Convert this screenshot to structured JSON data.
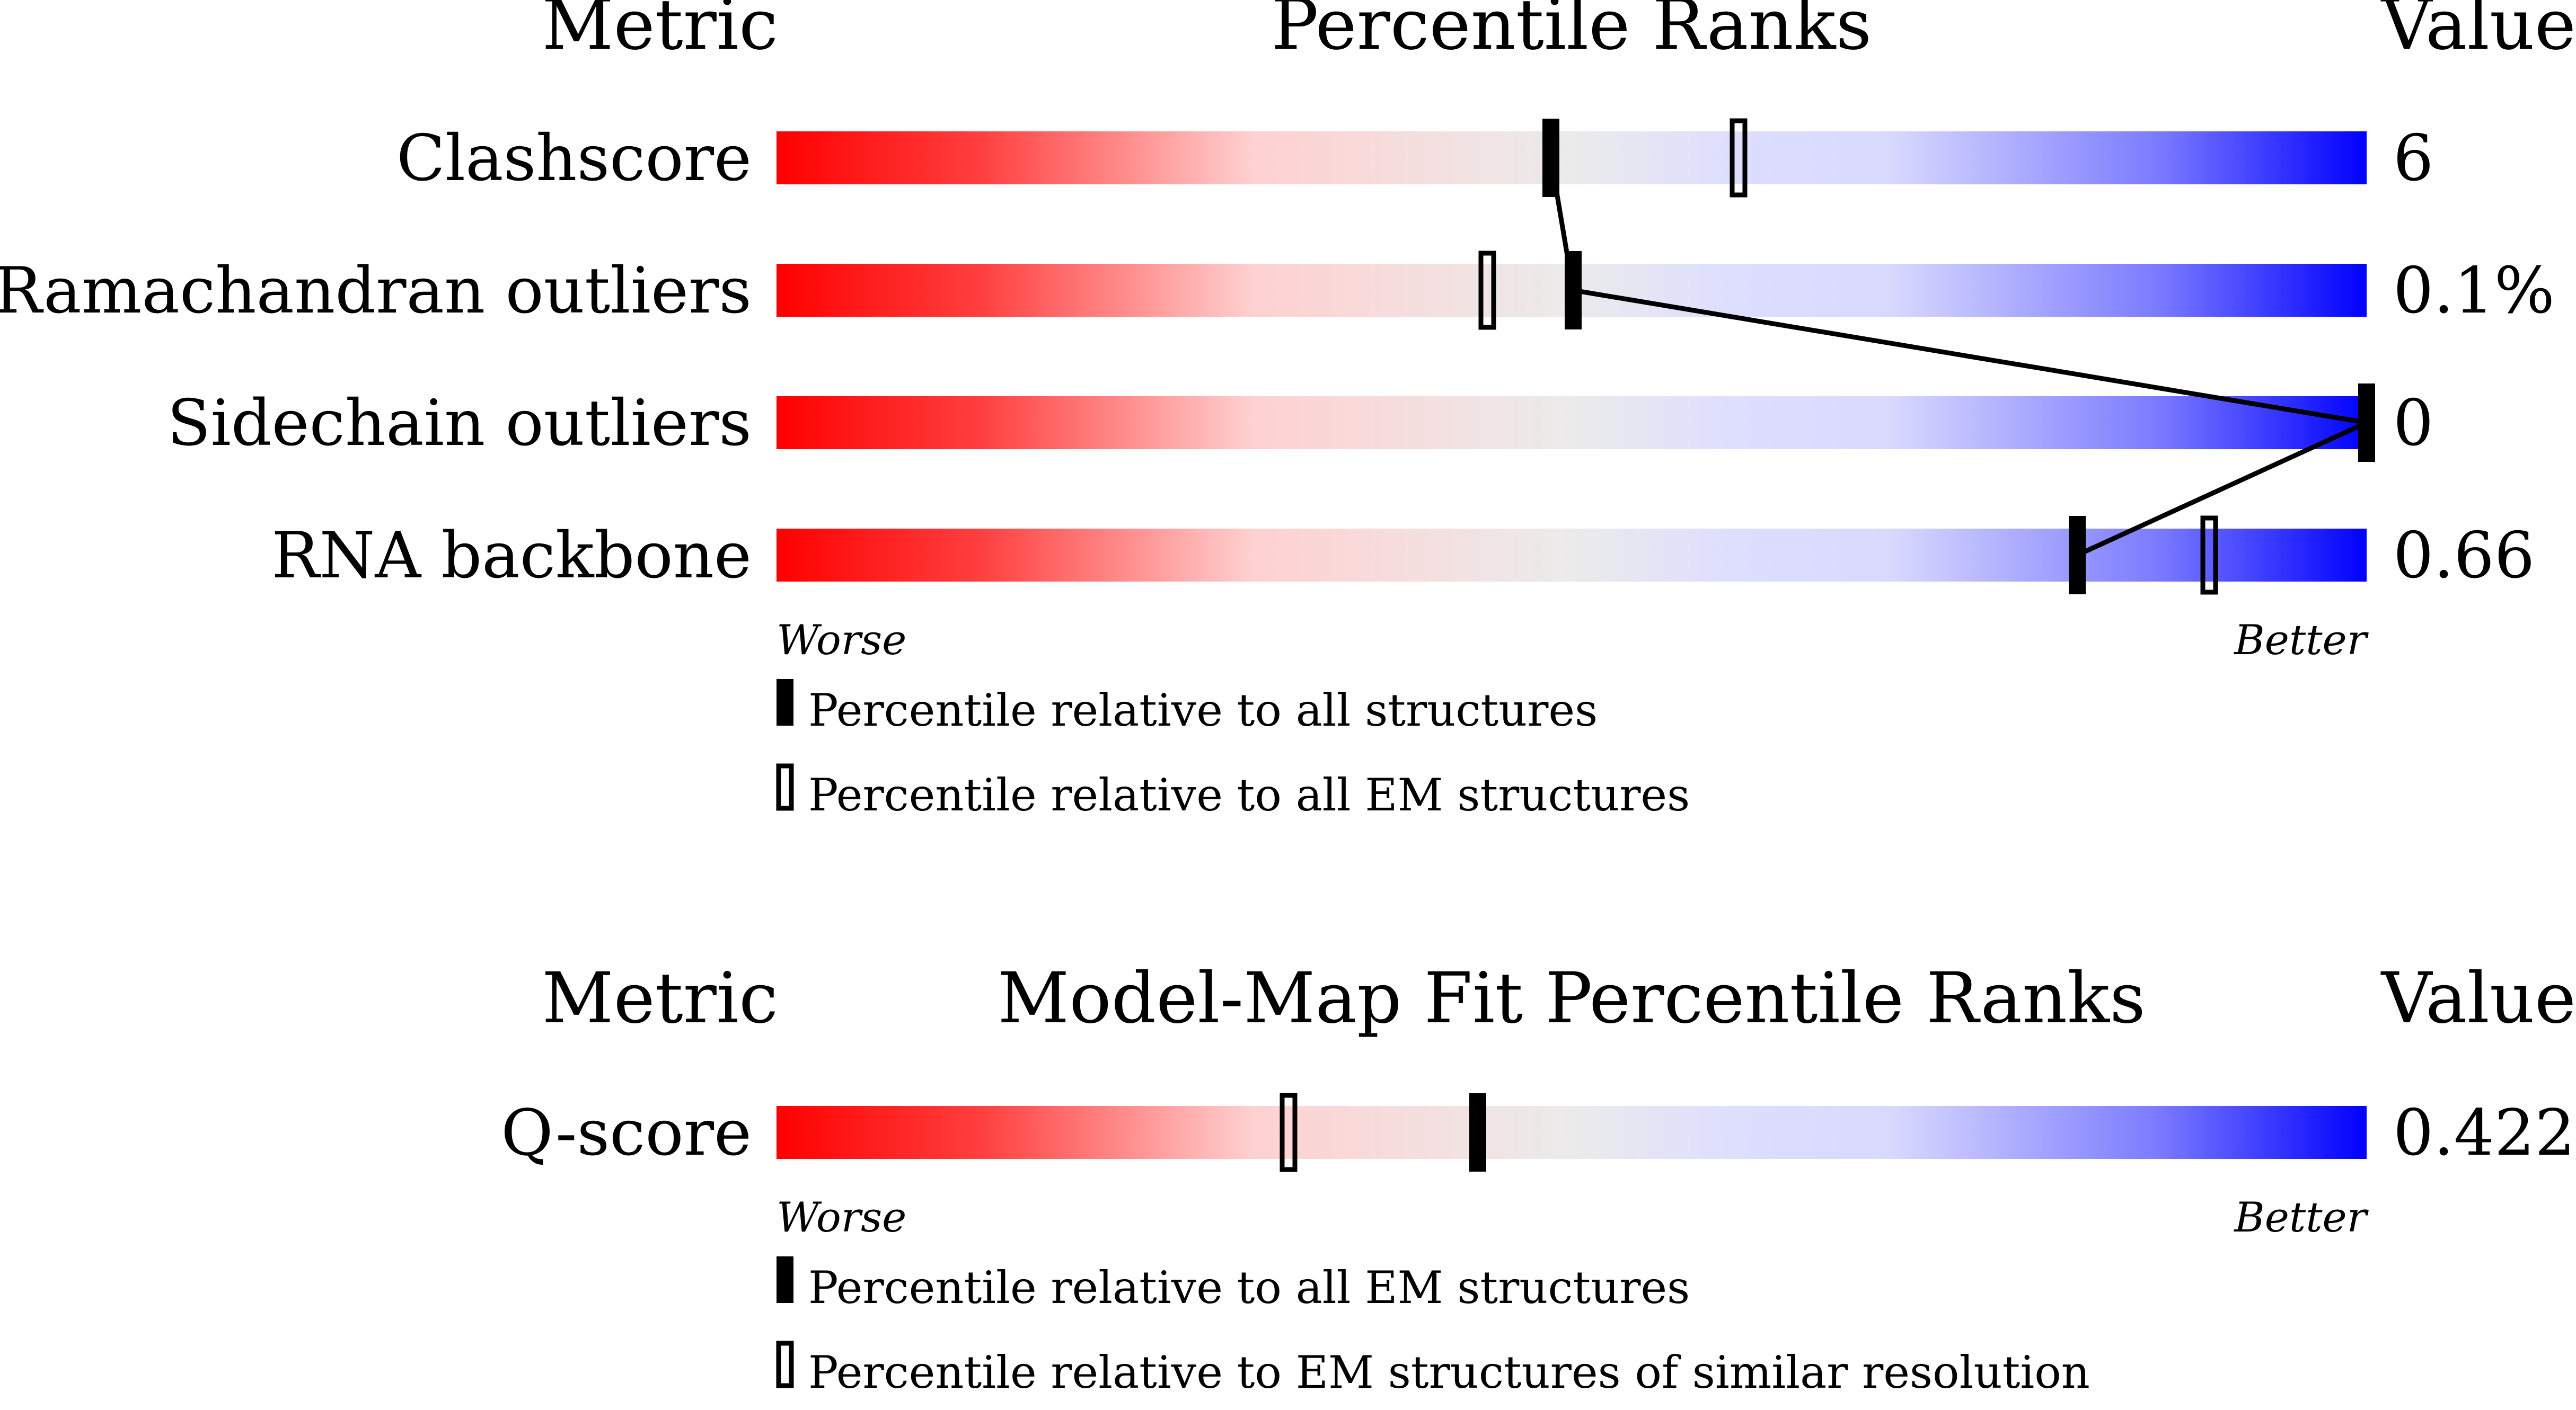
{
  "colors": {
    "worse": "#ff0000",
    "middle": "#ebebeb",
    "better": "#0000ff",
    "marker": "#000000"
  },
  "chart_data": [
    {
      "type": "bar",
      "headers": {
        "metric": "Metric",
        "title": "Percentile Ranks",
        "value": "Value"
      },
      "xlabel_left": "Worse",
      "xlabel_right": "Better",
      "xlim": [
        0,
        100
      ],
      "categories": [
        "Clashscore",
        "Ramachandran outliers",
        "Sidechain outliers",
        "RNA backbone"
      ],
      "values": [
        "6",
        "0.1%",
        "0",
        "0.66"
      ],
      "series": [
        {
          "name": "Percentile relative to all structures",
          "marker": "filled",
          "connected": true,
          "values": [
            48.7,
            50.1,
            100,
            81.8
          ]
        },
        {
          "name": "Percentile relative to all EM structures",
          "marker": "open",
          "values": [
            60.5,
            44.7,
            null,
            90.1
          ]
        }
      ],
      "legend": [
        "Percentile relative to all structures",
        "Percentile relative to all EM structures"
      ]
    },
    {
      "type": "bar",
      "headers": {
        "metric": "Metric",
        "title": "Model-Map Fit Percentile Ranks",
        "value": "Value"
      },
      "xlabel_left": "Worse",
      "xlabel_right": "Better",
      "xlim": [
        0,
        100
      ],
      "categories": [
        "Q-score"
      ],
      "values": [
        "0.422"
      ],
      "series": [
        {
          "name": "Percentile relative to all EM structures",
          "marker": "filled",
          "values": [
            44.1
          ]
        },
        {
          "name": "Percentile relative to EM structures of similar resolution",
          "marker": "open",
          "values": [
            32.2
          ]
        }
      ],
      "legend": [
        "Percentile relative to all EM structures",
        "Percentile relative to EM structures of similar resolution"
      ]
    }
  ]
}
